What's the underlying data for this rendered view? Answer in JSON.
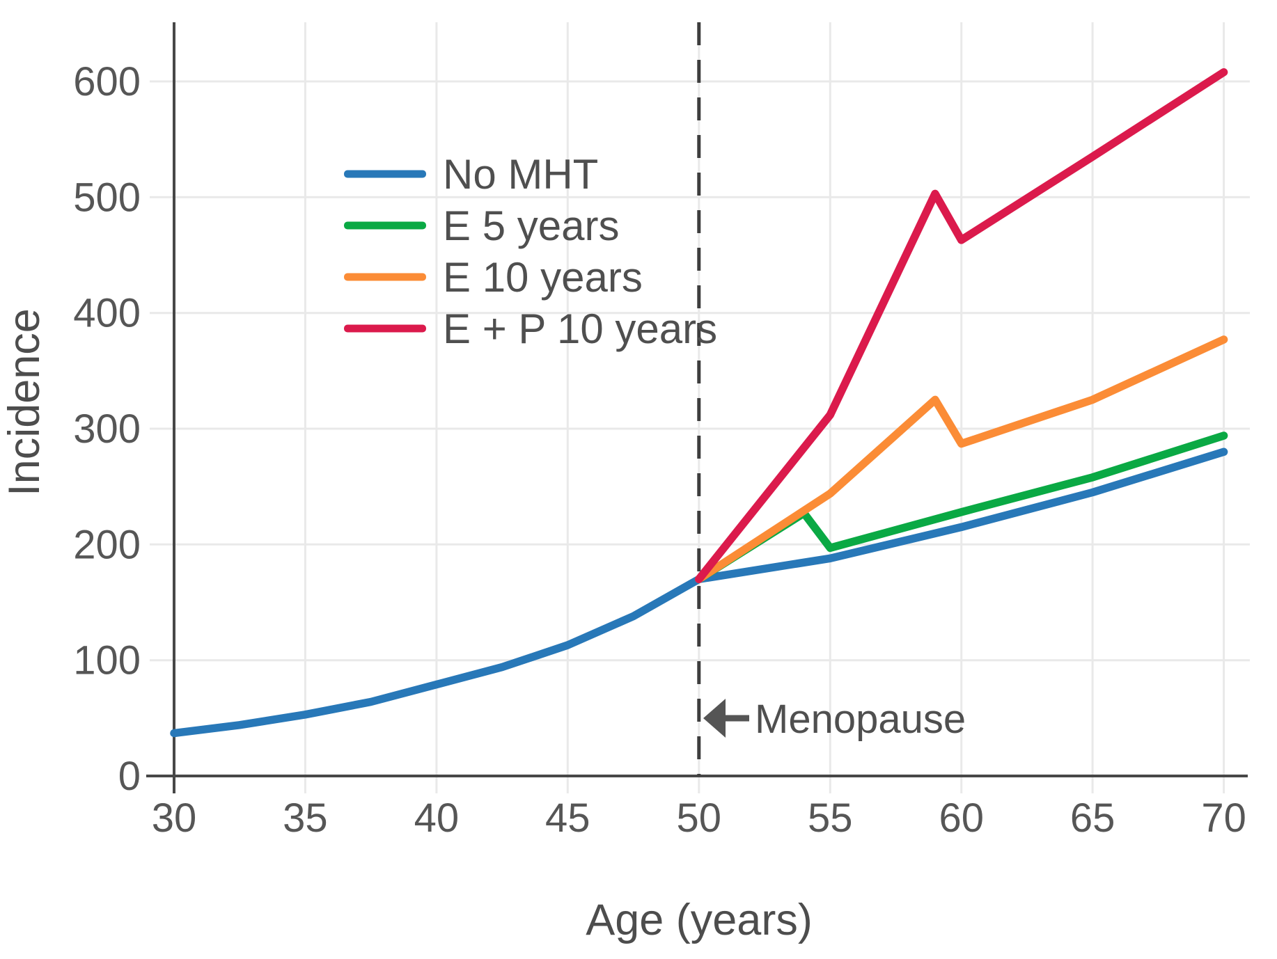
{
  "chart_data": {
    "type": "line",
    "title": "",
    "xlabel": "Age (years)",
    "ylabel": "Incidence",
    "x_ticks": [
      30,
      35,
      40,
      45,
      50,
      55,
      60,
      65,
      70
    ],
    "y_ticks": [
      0,
      100,
      200,
      300,
      400,
      500,
      600
    ],
    "xlim": [
      30,
      71
    ],
    "ylim": [
      0,
      650
    ],
    "grid": true,
    "legend_position": "upper-left-inside",
    "series": [
      {
        "name": "No MHT",
        "color": "#2878B8",
        "points": [
          [
            30,
            37
          ],
          [
            32.5,
            44
          ],
          [
            35,
            53
          ],
          [
            37.5,
            64
          ],
          [
            40,
            79
          ],
          [
            42.5,
            94
          ],
          [
            45,
            113
          ],
          [
            47.5,
            138
          ],
          [
            50,
            170
          ],
          [
            55,
            188
          ],
          [
            60,
            215
          ],
          [
            65,
            245
          ],
          [
            70,
            280
          ]
        ]
      },
      {
        "name": "E 5 years",
        "color": "#0AA944",
        "points": [
          [
            50,
            170
          ],
          [
            54,
            227
          ],
          [
            55,
            197
          ],
          [
            60,
            228
          ],
          [
            65,
            258
          ],
          [
            70,
            294
          ]
        ]
      },
      {
        "name": "E 10 years",
        "color": "#FB8C36",
        "points": [
          [
            50,
            170
          ],
          [
            55,
            244
          ],
          [
            59,
            325
          ],
          [
            60,
            287
          ],
          [
            65,
            325
          ],
          [
            70,
            377
          ]
        ]
      },
      {
        "name": "E + P 10 years",
        "color": "#DB1A4C",
        "points": [
          [
            50,
            170
          ],
          [
            55,
            312
          ],
          [
            59,
            503
          ],
          [
            60,
            463
          ],
          [
            65,
            535
          ],
          [
            70,
            608
          ]
        ]
      }
    ],
    "annotations": [
      {
        "type": "vline",
        "x": 50,
        "style": "dashed",
        "color": "#3d3d3d"
      },
      {
        "type": "arrow-label",
        "text": "Menopause",
        "x": 50,
        "y": 45,
        "direction": "left",
        "color": "#4f4f4f"
      }
    ]
  }
}
